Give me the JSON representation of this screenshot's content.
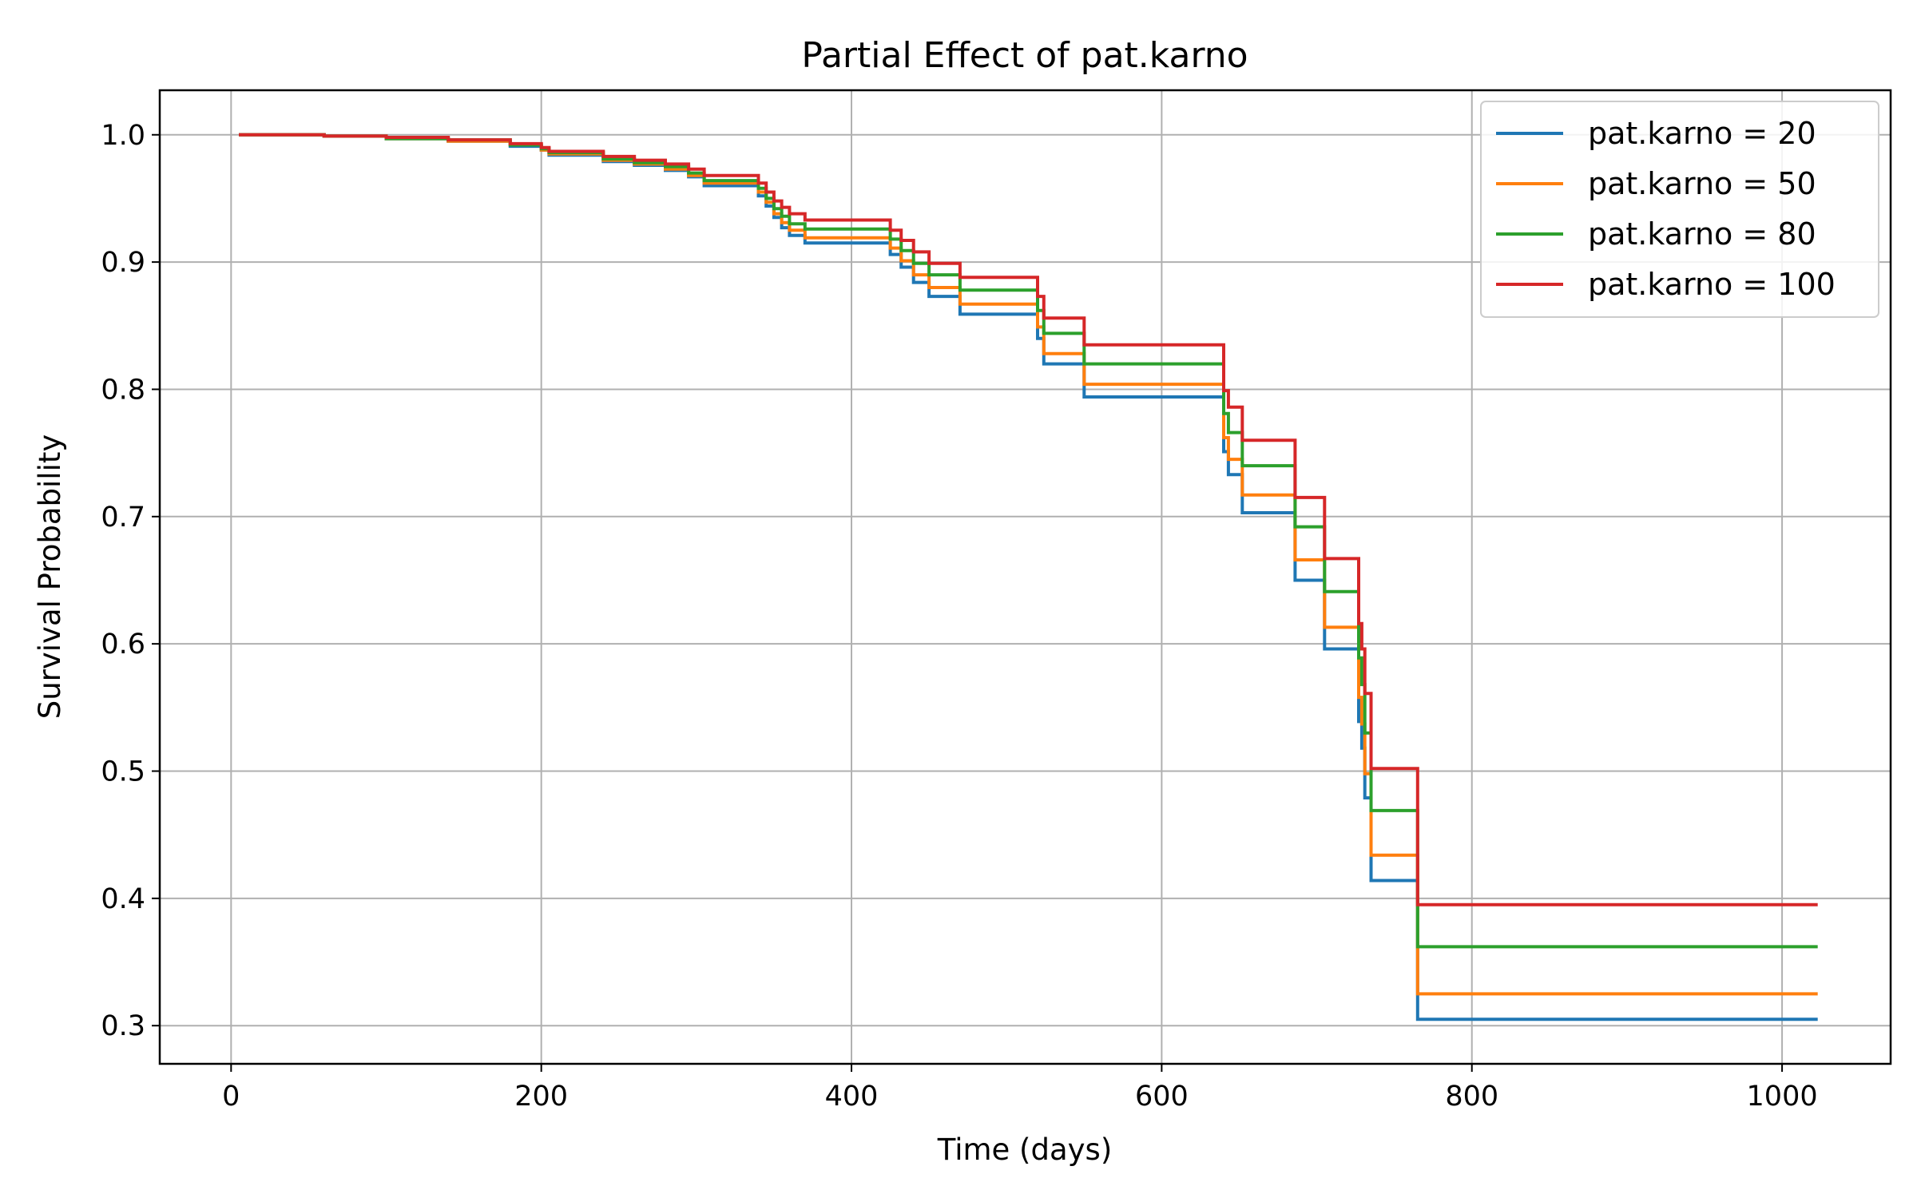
{
  "chart_data": {
    "type": "line",
    "title": "Partial Effect of pat.karno",
    "xlabel": "Time (days)",
    "ylabel": "Survival Probability",
    "xlim": [
      -46,
      1070
    ],
    "ylim": [
      0.27,
      1.035
    ],
    "xticks": [
      0,
      200,
      400,
      600,
      800,
      1000
    ],
    "yticks": [
      0.3,
      0.4,
      0.5,
      0.6,
      0.7,
      0.8,
      0.9,
      1.0
    ],
    "xtick_labels": [
      "0",
      "200",
      "400",
      "600",
      "800",
      "1000"
    ],
    "ytick_labels": [
      "0.3",
      "0.4",
      "0.5",
      "0.6",
      "0.7",
      "0.8",
      "0.9",
      "1.0"
    ],
    "grid": true,
    "legend_position": "top-right",
    "step": "post",
    "x": [
      5,
      60,
      100,
      140,
      180,
      200,
      205,
      240,
      260,
      280,
      295,
      305,
      340,
      345,
      350,
      355,
      360,
      370,
      425,
      432,
      440,
      450,
      470,
      520,
      524,
      550,
      640,
      643,
      652,
      686,
      705,
      727,
      729,
      731,
      735,
      765,
      1023
    ],
    "series": [
      {
        "name": "pat.karno = 20",
        "color": "#1f77b4",
        "values": [
          1.0,
          0.999,
          0.997,
          0.995,
          0.991,
          0.988,
          0.984,
          0.979,
          0.976,
          0.972,
          0.967,
          0.96,
          0.952,
          0.944,
          0.935,
          0.927,
          0.921,
          0.915,
          0.906,
          0.896,
          0.884,
          0.873,
          0.859,
          0.84,
          0.82,
          0.794,
          0.751,
          0.733,
          0.703,
          0.65,
          0.596,
          0.539,
          0.518,
          0.479,
          0.414,
          0.305,
          0.305
        ]
      },
      {
        "name": "pat.karno = 50",
        "color": "#ff7f0e",
        "values": [
          1.0,
          0.999,
          0.997,
          0.995,
          0.992,
          0.988,
          0.985,
          0.98,
          0.977,
          0.973,
          0.968,
          0.962,
          0.955,
          0.947,
          0.938,
          0.931,
          0.925,
          0.919,
          0.911,
          0.901,
          0.89,
          0.88,
          0.867,
          0.849,
          0.828,
          0.804,
          0.762,
          0.745,
          0.717,
          0.666,
          0.613,
          0.558,
          0.537,
          0.498,
          0.434,
          0.325,
          0.325
        ]
      },
      {
        "name": "pat.karno = 80",
        "color": "#2ca02c",
        "values": [
          1.0,
          0.999,
          0.997,
          0.996,
          0.992,
          0.989,
          0.986,
          0.981,
          0.978,
          0.975,
          0.97,
          0.964,
          0.958,
          0.95,
          0.942,
          0.936,
          0.93,
          0.926,
          0.918,
          0.909,
          0.899,
          0.89,
          0.878,
          0.862,
          0.844,
          0.82,
          0.781,
          0.766,
          0.74,
          0.692,
          0.641,
          0.589,
          0.568,
          0.53,
          0.469,
          0.362,
          0.362
        ]
      },
      {
        "name": "pat.karno = 100",
        "color": "#d62728",
        "values": [
          1.0,
          0.999,
          0.998,
          0.996,
          0.993,
          0.99,
          0.987,
          0.983,
          0.98,
          0.977,
          0.973,
          0.968,
          0.962,
          0.955,
          0.948,
          0.943,
          0.938,
          0.933,
          0.925,
          0.917,
          0.908,
          0.899,
          0.888,
          0.873,
          0.856,
          0.835,
          0.799,
          0.786,
          0.76,
          0.715,
          0.667,
          0.616,
          0.596,
          0.561,
          0.502,
          0.395,
          0.395
        ]
      }
    ]
  }
}
